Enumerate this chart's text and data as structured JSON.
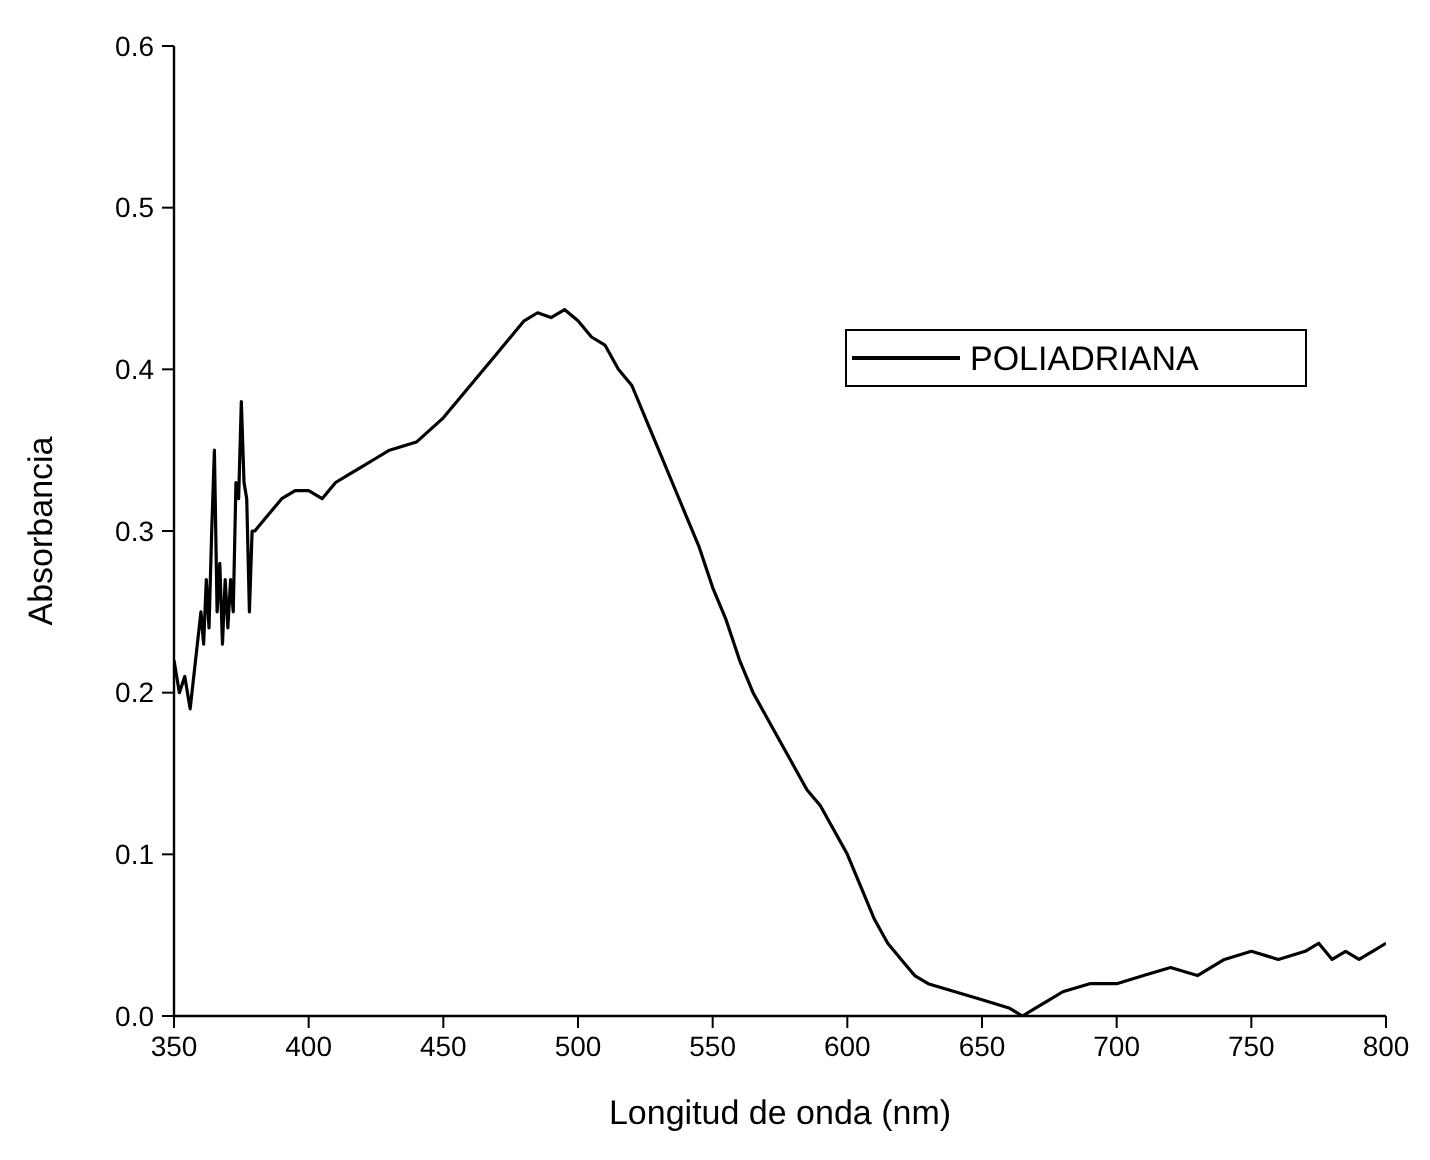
{
  "chart_data": {
    "type": "line",
    "xlabel": "Longitud de onda (nm)",
    "ylabel": "Absorbancia",
    "xlim": [
      350,
      800
    ],
    "ylim": [
      0,
      0.6
    ],
    "xticks": [
      350,
      400,
      450,
      500,
      550,
      600,
      650,
      700,
      750,
      800
    ],
    "yticks": [
      {
        "value": 0,
        "label": "0.0"
      },
      {
        "value": 0.1,
        "label": "0.1"
      },
      {
        "value": 0.2,
        "label": "0.2"
      },
      {
        "value": 0.3,
        "label": "0.3"
      },
      {
        "value": 0.4,
        "label": "0.4"
      },
      {
        "value": 0.5,
        "label": "0.5"
      },
      {
        "value": 0.6,
        "label": "0.6"
      }
    ],
    "grid": false,
    "legend": "top right",
    "marker": "none",
    "line_style": "solid",
    "x": [
      350,
      352,
      354,
      356,
      358,
      360,
      361,
      362,
      363,
      364,
      365,
      366,
      367,
      368,
      369,
      370,
      371,
      372,
      373,
      374,
      375,
      376,
      377,
      378,
      379,
      380,
      385,
      390,
      395,
      400,
      405,
      410,
      415,
      420,
      425,
      430,
      440,
      450,
      460,
      470,
      475,
      480,
      485,
      490,
      495,
      500,
      505,
      510,
      515,
      520,
      525,
      530,
      535,
      540,
      545,
      550,
      555,
      560,
      565,
      570,
      575,
      580,
      585,
      590,
      595,
      600,
      605,
      610,
      615,
      620,
      625,
      630,
      640,
      650,
      660,
      665,
      670,
      675,
      680,
      690,
      700,
      710,
      720,
      730,
      740,
      750,
      760,
      770,
      775,
      780,
      785,
      790,
      795,
      800
    ],
    "series": [
      {
        "name": "POLIADRIANA",
        "color": "#000000",
        "values": [
          0.22,
          0.2,
          0.21,
          0.19,
          0.22,
          0.25,
          0.23,
          0.27,
          0.24,
          0.3,
          0.35,
          0.25,
          0.28,
          0.23,
          0.27,
          0.24,
          0.27,
          0.25,
          0.33,
          0.32,
          0.38,
          0.33,
          0.32,
          0.25,
          0.3,
          0.3,
          0.31,
          0.32,
          0.325,
          0.325,
          0.32,
          0.33,
          0.335,
          0.34,
          0.345,
          0.35,
          0.355,
          0.37,
          0.39,
          0.41,
          0.42,
          0.43,
          0.435,
          0.432,
          0.437,
          0.43,
          0.42,
          0.415,
          0.4,
          0.39,
          0.37,
          0.35,
          0.33,
          0.31,
          0.29,
          0.265,
          0.245,
          0.22,
          0.2,
          0.185,
          0.17,
          0.155,
          0.14,
          0.13,
          0.115,
          0.1,
          0.08,
          0.06,
          0.045,
          0.035,
          0.025,
          0.02,
          0.015,
          0.01,
          0.005,
          0,
          0.005,
          0.01,
          0.015,
          0.02,
          0.02,
          0.025,
          0.03,
          0.025,
          0.035,
          0.04,
          0.035,
          0.04,
          0.045,
          0.035,
          0.04,
          0.035,
          0.04,
          0.045
        ]
      }
    ]
  }
}
